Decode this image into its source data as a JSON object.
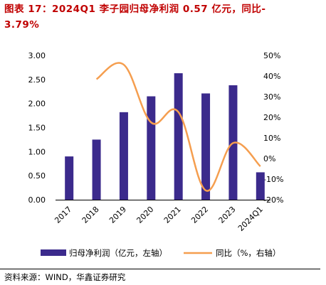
{
  "title_line1": "图表 17：2024Q1 李子园归母净利润 0.57 亿元，同比-",
  "title_line2": "3.79%",
  "source": "资料来源：WIND，华鑫证券研究",
  "colors": {
    "bar": "#3b2a8c",
    "line": "#f59e4f",
    "title": "#c00000"
  },
  "chart_data": {
    "type": "bar+line",
    "categories": [
      "2017",
      "2018",
      "2019",
      "2020",
      "2021",
      "2022",
      "2023",
      "2024Q1"
    ],
    "series": [
      {
        "name": "归母净利润（亿元，左轴）",
        "type": "bar",
        "axis": "left",
        "values": [
          0.9,
          1.25,
          1.82,
          2.15,
          2.63,
          2.21,
          2.38,
          0.57
        ]
      },
      {
        "name": "同比（%，右轴）",
        "type": "line",
        "axis": "right",
        "values": [
          null,
          38.5,
          45.5,
          17.5,
          22.5,
          -15.5,
          7.5,
          -3.79
        ]
      }
    ],
    "left_axis": {
      "ylim": [
        0,
        3
      ],
      "ticks": [
        "3.00",
        "2.50",
        "2.00",
        "1.50",
        "1.00",
        "0.50",
        "0.00"
      ]
    },
    "right_axis": {
      "ylim": [
        -20,
        50
      ],
      "ticks": [
        "50%",
        "40%",
        "30%",
        "20%",
        "10%",
        "0%",
        "-10%",
        "-20%"
      ]
    },
    "legend": "bottom",
    "grid": false
  }
}
